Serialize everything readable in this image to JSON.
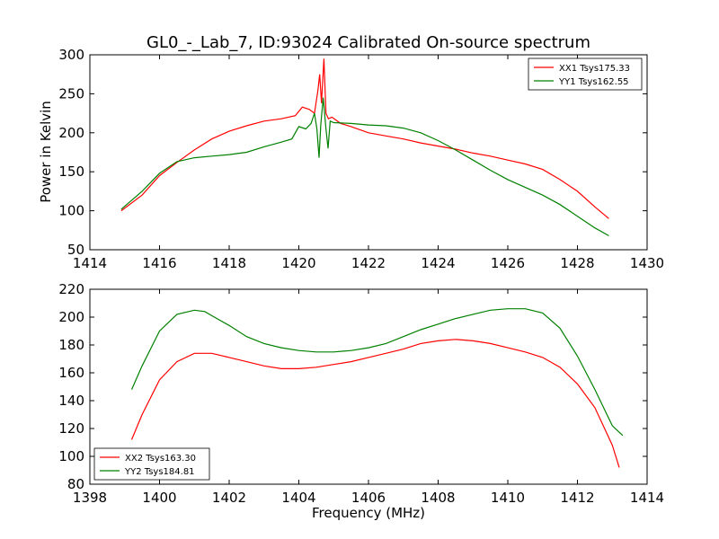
{
  "chart_data": [
    {
      "type": "line",
      "title": "GL0_-_Lab_7, ID:93024 Calibrated On-source spectrum",
      "xlabel": "",
      "ylabel": "Power in Kelvin",
      "xlim": [
        1414,
        1430
      ],
      "ylim": [
        50,
        300
      ],
      "xticks": [
        1414,
        1416,
        1418,
        1420,
        1422,
        1424,
        1426,
        1428,
        1430
      ],
      "yticks": [
        50,
        100,
        150,
        200,
        250,
        300
      ],
      "legend_position": "top-right",
      "grid": false,
      "series": [
        {
          "name": "XX1 Tsys175.33",
          "color": "#ff0000",
          "points": [
            [
              1414.9,
              100
            ],
            [
              1415.5,
              120
            ],
            [
              1416,
              145
            ],
            [
              1416.5,
              162
            ],
            [
              1417,
              178
            ],
            [
              1417.5,
              192
            ],
            [
              1418,
              202
            ],
            [
              1418.5,
              209
            ],
            [
              1419,
              215
            ],
            [
              1419.5,
              218
            ],
            [
              1419.9,
              222
            ],
            [
              1420.1,
              233
            ],
            [
              1420.3,
              230
            ],
            [
              1420.45,
              225
            ],
            [
              1420.55,
              255
            ],
            [
              1420.6,
              275
            ],
            [
              1420.65,
              238
            ],
            [
              1420.72,
              295
            ],
            [
              1420.78,
              225
            ],
            [
              1420.85,
              218
            ],
            [
              1420.95,
              220
            ],
            [
              1421.2,
              212
            ],
            [
              1421.5,
              208
            ],
            [
              1422,
              200
            ],
            [
              1422.5,
              196
            ],
            [
              1423,
              192
            ],
            [
              1423.5,
              187
            ],
            [
              1424,
              183
            ],
            [
              1424.5,
              179
            ],
            [
              1425,
              174
            ],
            [
              1425.5,
              170
            ],
            [
              1426,
              165
            ],
            [
              1426.5,
              160
            ],
            [
              1427,
              153
            ],
            [
              1427.5,
              140
            ],
            [
              1428,
              125
            ],
            [
              1428.5,
              105
            ],
            [
              1428.9,
              90
            ]
          ]
        },
        {
          "name": "YY1 Tsys162.55",
          "color": "#008000",
          "points": [
            [
              1414.9,
              102
            ],
            [
              1415.5,
              125
            ],
            [
              1416,
              148
            ],
            [
              1416.5,
              163
            ],
            [
              1417,
              168
            ],
            [
              1417.5,
              170
            ],
            [
              1418,
              172
            ],
            [
              1418.5,
              175
            ],
            [
              1419,
              182
            ],
            [
              1419.5,
              188
            ],
            [
              1419.8,
              192
            ],
            [
              1420,
              208
            ],
            [
              1420.2,
              205
            ],
            [
              1420.35,
              212
            ],
            [
              1420.45,
              225
            ],
            [
              1420.52,
              205
            ],
            [
              1420.58,
              168
            ],
            [
              1420.63,
              210
            ],
            [
              1420.7,
              245
            ],
            [
              1420.78,
              205
            ],
            [
              1420.84,
              180
            ],
            [
              1420.9,
              215
            ],
            [
              1421,
              213
            ],
            [
              1421.5,
              212
            ],
            [
              1422,
              210
            ],
            [
              1422.5,
              209
            ],
            [
              1423,
              206
            ],
            [
              1423.5,
              200
            ],
            [
              1424,
              190
            ],
            [
              1424.5,
              178
            ],
            [
              1425,
              165
            ],
            [
              1425.5,
              152
            ],
            [
              1426,
              140
            ],
            [
              1426.5,
              130
            ],
            [
              1427,
              120
            ],
            [
              1427.5,
              108
            ],
            [
              1428,
              93
            ],
            [
              1428.5,
              78
            ],
            [
              1428.9,
              68
            ]
          ]
        }
      ]
    },
    {
      "type": "line",
      "title": "",
      "xlabel": "Frequency (MHz)",
      "ylabel": "",
      "xlim": [
        1398,
        1414
      ],
      "ylim": [
        80,
        220
      ],
      "xticks": [
        1398,
        1400,
        1402,
        1404,
        1406,
        1408,
        1410,
        1412,
        1414
      ],
      "yticks": [
        80,
        100,
        120,
        140,
        160,
        180,
        200,
        220
      ],
      "legend_position": "bottom-left",
      "grid": false,
      "series": [
        {
          "name": "XX2 Tsys163.30",
          "color": "#ff0000",
          "points": [
            [
              1399.2,
              112
            ],
            [
              1399.5,
              130
            ],
            [
              1400,
              155
            ],
            [
              1400.5,
              168
            ],
            [
              1401,
              174
            ],
            [
              1401.5,
              174
            ],
            [
              1402,
              171
            ],
            [
              1402.5,
              168
            ],
            [
              1403,
              165
            ],
            [
              1403.5,
              163
            ],
            [
              1404,
              163
            ],
            [
              1404.5,
              164
            ],
            [
              1405,
              166
            ],
            [
              1405.5,
              168
            ],
            [
              1406,
              171
            ],
            [
              1406.5,
              174
            ],
            [
              1407,
              177
            ],
            [
              1407.5,
              181
            ],
            [
              1408,
              183
            ],
            [
              1408.5,
              184
            ],
            [
              1409,
              183
            ],
            [
              1409.5,
              181
            ],
            [
              1410,
              178
            ],
            [
              1410.5,
              175
            ],
            [
              1411,
              171
            ],
            [
              1411.5,
              164
            ],
            [
              1412,
              152
            ],
            [
              1412.5,
              135
            ],
            [
              1413,
              108
            ],
            [
              1413.2,
              92
            ]
          ]
        },
        {
          "name": "YY2 Tsys184.81",
          "color": "#008000",
          "points": [
            [
              1399.2,
              148
            ],
            [
              1399.5,
              165
            ],
            [
              1400,
              190
            ],
            [
              1400.5,
              202
            ],
            [
              1401,
              205
            ],
            [
              1401.3,
              204
            ],
            [
              1401.5,
              201
            ],
            [
              1402,
              194
            ],
            [
              1402.5,
              186
            ],
            [
              1403,
              181
            ],
            [
              1403.5,
              178
            ],
            [
              1404,
              176
            ],
            [
              1404.5,
              175
            ],
            [
              1405,
              175
            ],
            [
              1405.5,
              176
            ],
            [
              1406,
              178
            ],
            [
              1406.5,
              181
            ],
            [
              1407,
              186
            ],
            [
              1407.5,
              191
            ],
            [
              1408,
              195
            ],
            [
              1408.5,
              199
            ],
            [
              1409,
              202
            ],
            [
              1409.5,
              205
            ],
            [
              1410,
              206
            ],
            [
              1410.5,
              206
            ],
            [
              1411,
              203
            ],
            [
              1411.5,
              192
            ],
            [
              1412,
              172
            ],
            [
              1412.5,
              148
            ],
            [
              1413,
              122
            ],
            [
              1413.3,
              115
            ]
          ]
        }
      ]
    }
  ]
}
